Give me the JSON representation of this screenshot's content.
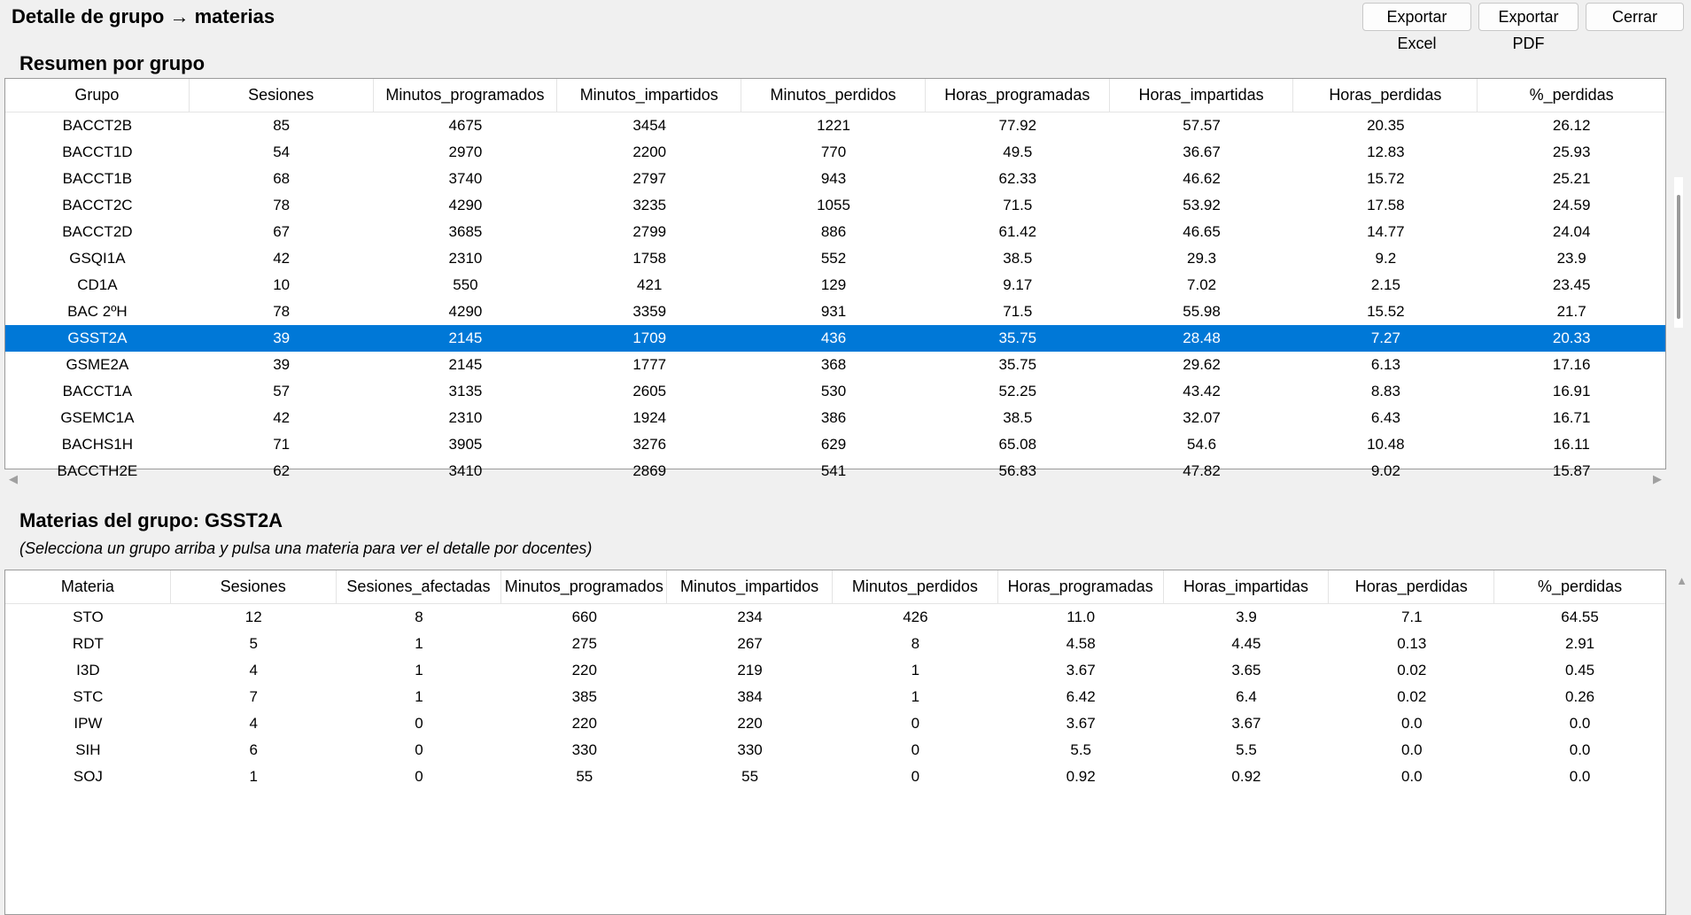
{
  "window": {
    "title": "Detalle de grupo → materias"
  },
  "buttons": {
    "export_excel": "Exportar Excel",
    "export_pdf": "Exportar PDF",
    "close": "Cerrar"
  },
  "summary": {
    "title": "Resumen por grupo",
    "columns": [
      "Grupo",
      "Sesiones",
      "Minutos_programados",
      "Minutos_impartidos",
      "Minutos_perdidos",
      "Horas_programadas",
      "Horas_impartidas",
      "Horas_perdidas",
      "%_perdidas"
    ],
    "rows": [
      [
        "BACCT2B",
        "85",
        "4675",
        "3454",
        "1221",
        "77.92",
        "57.57",
        "20.35",
        "26.12"
      ],
      [
        "BACCT1D",
        "54",
        "2970",
        "2200",
        "770",
        "49.5",
        "36.67",
        "12.83",
        "25.93"
      ],
      [
        "BACCT1B",
        "68",
        "3740",
        "2797",
        "943",
        "62.33",
        "46.62",
        "15.72",
        "25.21"
      ],
      [
        "BACCT2C",
        "78",
        "4290",
        "3235",
        "1055",
        "71.5",
        "53.92",
        "17.58",
        "24.59"
      ],
      [
        "BACCT2D",
        "67",
        "3685",
        "2799",
        "886",
        "61.42",
        "46.65",
        "14.77",
        "24.04"
      ],
      [
        "GSQI1A",
        "42",
        "2310",
        "1758",
        "552",
        "38.5",
        "29.3",
        "9.2",
        "23.9"
      ],
      [
        "CD1A",
        "10",
        "550",
        "421",
        "129",
        "9.17",
        "7.02",
        "2.15",
        "23.45"
      ],
      [
        "BAC 2ºH",
        "78",
        "4290",
        "3359",
        "931",
        "71.5",
        "55.98",
        "15.52",
        "21.7"
      ],
      [
        "GSST2A",
        "39",
        "2145",
        "1709",
        "436",
        "35.75",
        "28.48",
        "7.27",
        "20.33"
      ],
      [
        "GSME2A",
        "39",
        "2145",
        "1777",
        "368",
        "35.75",
        "29.62",
        "6.13",
        "17.16"
      ],
      [
        "BACCT1A",
        "57",
        "3135",
        "2605",
        "530",
        "52.25",
        "43.42",
        "8.83",
        "16.91"
      ],
      [
        "GSEMC1A",
        "42",
        "2310",
        "1924",
        "386",
        "38.5",
        "32.07",
        "6.43",
        "16.71"
      ],
      [
        "BACHS1H",
        "71",
        "3905",
        "3276",
        "629",
        "65.08",
        "54.6",
        "10.48",
        "16.11"
      ],
      [
        "BACCTH2E",
        "62",
        "3410",
        "2869",
        "541",
        "56.83",
        "47.82",
        "9.02",
        "15.87"
      ]
    ],
    "selected_group": "GSST2A"
  },
  "detail": {
    "title_prefix": "Materias del grupo: ",
    "group": "GSST2A",
    "hint": "(Selecciona un grupo arriba y pulsa una materia para ver el detalle por docentes)",
    "columns": [
      "Materia",
      "Sesiones",
      "Sesiones_afectadas",
      "Minutos_programados",
      "Minutos_impartidos",
      "Minutos_perdidos",
      "Horas_programadas",
      "Horas_impartidas",
      "Horas_perdidas",
      "%_perdidas"
    ],
    "rows": [
      [
        "STO",
        "12",
        "8",
        "660",
        "234",
        "426",
        "11.0",
        "3.9",
        "7.1",
        "64.55"
      ],
      [
        "RDT",
        "5",
        "1",
        "275",
        "267",
        "8",
        "4.58",
        "4.45",
        "0.13",
        "2.91"
      ],
      [
        "I3D",
        "4",
        "1",
        "220",
        "219",
        "1",
        "3.67",
        "3.65",
        "0.02",
        "0.45"
      ],
      [
        "STC",
        "7",
        "1",
        "385",
        "384",
        "1",
        "6.42",
        "6.4",
        "0.02",
        "0.26"
      ],
      [
        "IPW",
        "4",
        "0",
        "220",
        "220",
        "0",
        "3.67",
        "3.67",
        "0.0",
        "0.0"
      ],
      [
        "SIH",
        "6",
        "0",
        "330",
        "330",
        "0",
        "5.5",
        "5.5",
        "0.0",
        "0.0"
      ],
      [
        "SOJ",
        "1",
        "0",
        "55",
        "55",
        "0",
        "0.92",
        "0.92",
        "0.0",
        "0.0"
      ]
    ]
  }
}
